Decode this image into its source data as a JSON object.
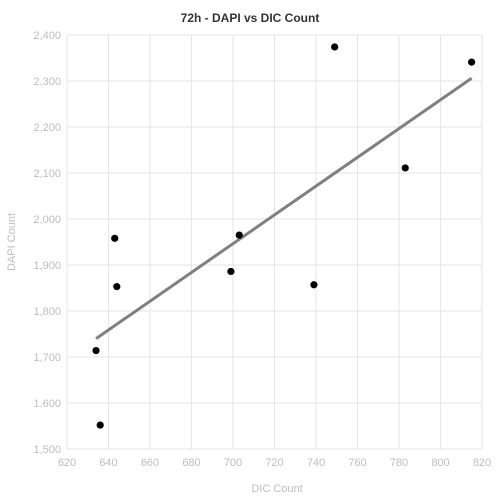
{
  "chart_data": {
    "type": "scatter",
    "title": "72h - DAPI vs DIC Count",
    "xlabel": "DIC Count",
    "ylabel": "DAPI Count",
    "xlim": [
      620,
      820
    ],
    "ylim": [
      1500,
      2400
    ],
    "x_ticks": [
      "620",
      "640",
      "660",
      "680",
      "700",
      "720",
      "740",
      "760",
      "780",
      "800",
      "820"
    ],
    "y_ticks": [
      "1,500",
      "1,600",
      "1,700",
      "1,800",
      "1,900",
      "2,000",
      "2,100",
      "2,200",
      "2,300",
      "2,400"
    ],
    "grid": true,
    "points": [
      {
        "x": 634,
        "y": 1714
      },
      {
        "x": 636,
        "y": 1552
      },
      {
        "x": 643,
        "y": 1958
      },
      {
        "x": 644,
        "y": 1853
      },
      {
        "x": 699,
        "y": 1886
      },
      {
        "x": 703,
        "y": 1965
      },
      {
        "x": 739,
        "y": 1857
      },
      {
        "x": 749,
        "y": 2374
      },
      {
        "x": 783,
        "y": 2111
      },
      {
        "x": 815,
        "y": 2341
      }
    ],
    "trendline": {
      "x": [
        634,
        815
      ],
      "y": [
        1740,
        2306
      ]
    },
    "colors": {
      "points": "#000000",
      "trendline": "#808080",
      "grid": "#e5e5e5",
      "axis_text": "#bdbdbd",
      "title": "#333333"
    }
  }
}
